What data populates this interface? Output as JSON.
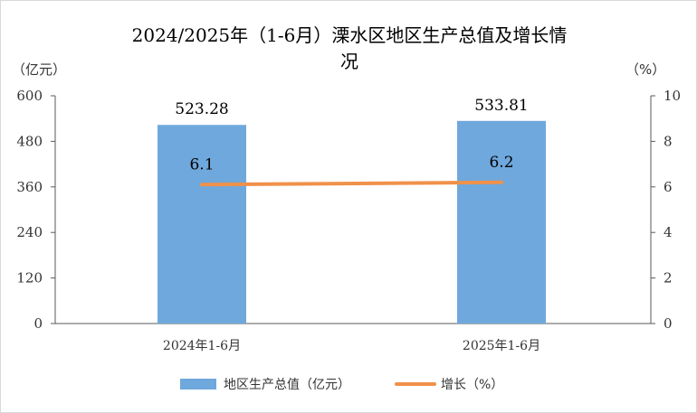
{
  "chart_data": {
    "type": "bar",
    "title_line1": "2024/2025年（1-6月）溧水区地区生产总值及增长情",
    "title_line2": "况",
    "y_left_label": "（亿元）",
    "y_right_label": "（%）",
    "categories": [
      "2024年1-6月",
      "2025年1-6月"
    ],
    "y_left_ticks": [
      "0",
      "120",
      "240",
      "360",
      "480",
      "600"
    ],
    "y_right_ticks": [
      "0",
      "2",
      "4",
      "6",
      "8",
      "10"
    ],
    "ylim_left": [
      0,
      600
    ],
    "ylim_right": [
      0,
      10
    ],
    "grid": false,
    "legend_position": "bottom",
    "series": [
      {
        "name": "地区生产总值（亿元）",
        "type": "bar",
        "axis": "left",
        "values": [
          523.28,
          533.81
        ],
        "labels": [
          "523.28",
          "533.81"
        ],
        "color": "#6FA8DC"
      },
      {
        "name": "增长（%）",
        "type": "line",
        "axis": "right",
        "values": [
          6.1,
          6.2
        ],
        "labels": [
          "6.1",
          "6.2"
        ],
        "color": "#F0914A"
      }
    ]
  }
}
